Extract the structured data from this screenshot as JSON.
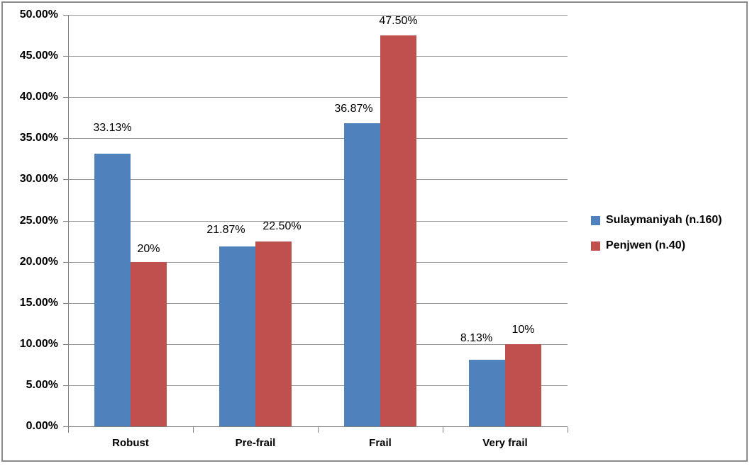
{
  "chart_data": {
    "type": "bar",
    "title": "",
    "xlabel": "",
    "ylabel": "",
    "categories": [
      "Robust",
      "Pre-frail",
      "Frail",
      "Very frail"
    ],
    "series": [
      {
        "name": "Sulaymaniyah (n.160)",
        "color": "#4F81BD",
        "values": [
          33.13,
          21.87,
          36.87,
          8.13
        ],
        "labels": [
          "33.13%",
          "21.87%",
          "36.87%",
          "8.13%"
        ]
      },
      {
        "name": "Penjwen (n.40)",
        "color": "#C0504D",
        "values": [
          20,
          22.5,
          47.5,
          10
        ],
        "labels": [
          "20%",
          "22.50%",
          "47.50%",
          "10%"
        ]
      }
    ],
    "ylim": [
      0,
      50
    ],
    "y_ticks": [
      "0.00%",
      "5.00%",
      "10.00%",
      "15.00%",
      "20.00%",
      "25.00%",
      "30.00%",
      "35.00%",
      "40.00%",
      "45.00%",
      "50.00%"
    ],
    "grid": true,
    "legend_position": "right"
  },
  "frame": {
    "border_color": "#8a8a8a",
    "gridline_color": "#969696",
    "axis_color": "#7f7f7f",
    "text_color": "#000000",
    "background": "#ffffff"
  }
}
